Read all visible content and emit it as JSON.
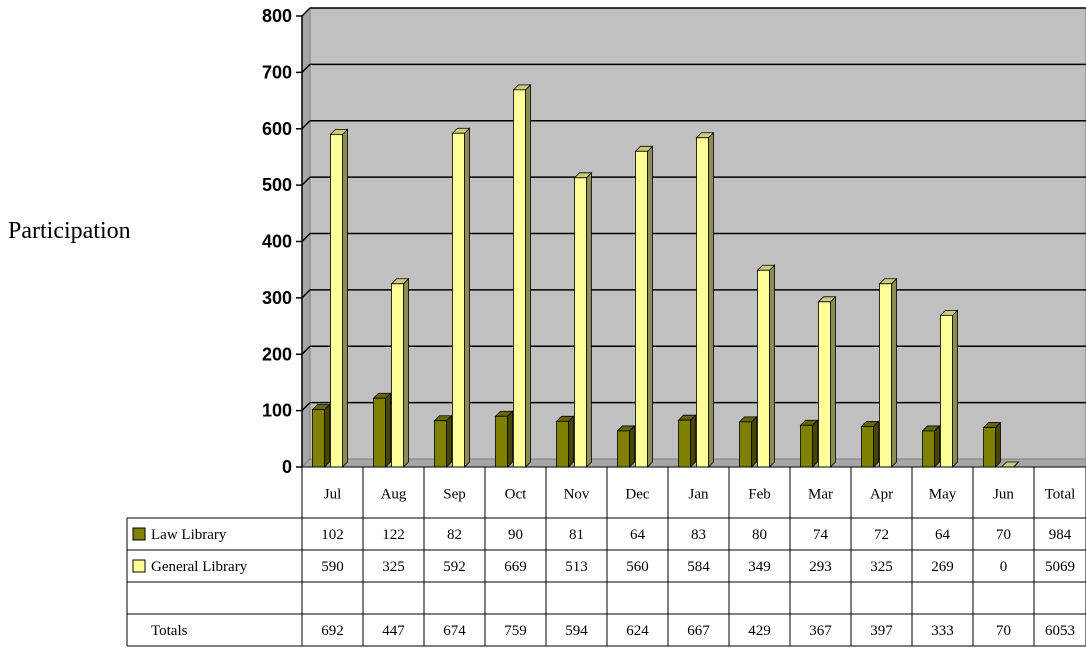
{
  "chart_data": {
    "type": "bar",
    "ylabel": "Participation",
    "ylim": [
      0,
      800
    ],
    "yticks": [
      "0",
      "100",
      "200",
      "300",
      "400",
      "500",
      "600",
      "700",
      "800"
    ],
    "categories": [
      "Jul",
      "Aug",
      "Sep",
      "Oct",
      "Nov",
      "Dec",
      "Jan",
      "Feb",
      "Mar",
      "Apr",
      "May",
      "Jun"
    ],
    "total_header": "Total",
    "grid": true,
    "legend": "data-table",
    "series": [
      {
        "name": "Law Library",
        "color": "#808000",
        "values": [
          102,
          122,
          82,
          90,
          81,
          64,
          83,
          80,
          74,
          72,
          64,
          70
        ],
        "table_values": [
          "102",
          "122",
          "82",
          "90",
          "81",
          "64",
          "83",
          "80",
          "74",
          "72",
          "64",
          "70",
          "984"
        ]
      },
      {
        "name": "General Library",
        "color": "#ffff99",
        "values": [
          590,
          325,
          592,
          669,
          513,
          560,
          584,
          349,
          293,
          325,
          269,
          0
        ],
        "table_values": [
          "590",
          "325",
          "592",
          "669",
          "513",
          "560",
          "584",
          "349",
          "293",
          "325",
          "269",
          "0",
          "5069"
        ]
      }
    ],
    "totals_row": {
      "label": "Totals",
      "values": [
        "692",
        "447",
        "674",
        "759",
        "594",
        "624",
        "667",
        "429",
        "367",
        "397",
        "333",
        "70",
        "6053"
      ]
    }
  }
}
